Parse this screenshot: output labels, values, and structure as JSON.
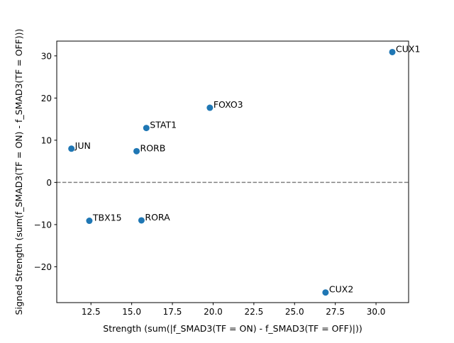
{
  "chart_data": {
    "type": "scatter",
    "title": "",
    "xlabel": "Strength (sum(|f_SMAD3(TF = ON) - f_SMAD3(TF = OFF)|))",
    "ylabel": "Signed Strength (sum(f_SMAD3(TF = ON) - f_SMAD3(TF = OFF)))",
    "xlim": [
      10.4,
      32.0
    ],
    "ylim": [
      -28.5,
      33.5
    ],
    "xticks": [
      "12.5",
      "15.0",
      "17.5",
      "20.0",
      "22.5",
      "25.0",
      "27.5",
      "30.0"
    ],
    "yticks": [
      "30",
      "20",
      "10",
      "0",
      "−10",
      "−20"
    ],
    "grid": false,
    "reference_line": {
      "y": 0,
      "style": "dashed",
      "color": "#808080"
    },
    "marker_color": "#1f77b4",
    "points": [
      {
        "label": "CUX1",
        "x": 31.0,
        "y": 30.9
      },
      {
        "label": "FOXO3",
        "x": 19.8,
        "y": 17.7
      },
      {
        "label": "STAT1",
        "x": 15.9,
        "y": 12.9
      },
      {
        "label": "JUN",
        "x": 11.3,
        "y": 8.0
      },
      {
        "label": "RORB",
        "x": 15.3,
        "y": 7.4
      },
      {
        "label": "TBX15",
        "x": 12.4,
        "y": -9.1
      },
      {
        "label": "RORA",
        "x": 15.6,
        "y": -9.0
      },
      {
        "label": "CUX2",
        "x": 26.9,
        "y": -26.1
      }
    ]
  }
}
